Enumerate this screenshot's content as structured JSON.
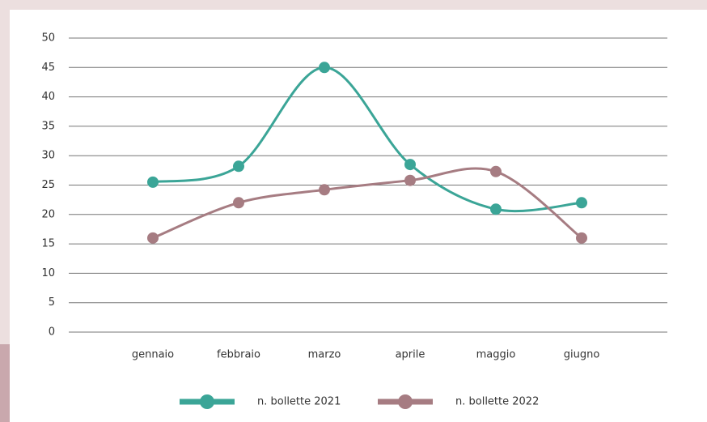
{
  "chart_data": {
    "type": "line",
    "categories": [
      "gennaio",
      "febbraio",
      "marzo",
      "aprile",
      "maggio",
      "giugno"
    ],
    "series": [
      {
        "name": "n. bollette 2021",
        "color": "#3ba597",
        "values": [
          25.5,
          28.2,
          45,
          28.5,
          20.9,
          22
        ]
      },
      {
        "name": "n. bollette 2022",
        "color": "#a67c82",
        "values": [
          16,
          22,
          24.2,
          25.8,
          27.3,
          16
        ]
      }
    ],
    "ylim": [
      0,
      50
    ],
    "yticks": [
      0,
      5,
      10,
      15,
      20,
      25,
      30,
      35,
      40,
      45,
      50
    ],
    "grid": true,
    "legend": "bottom"
  }
}
